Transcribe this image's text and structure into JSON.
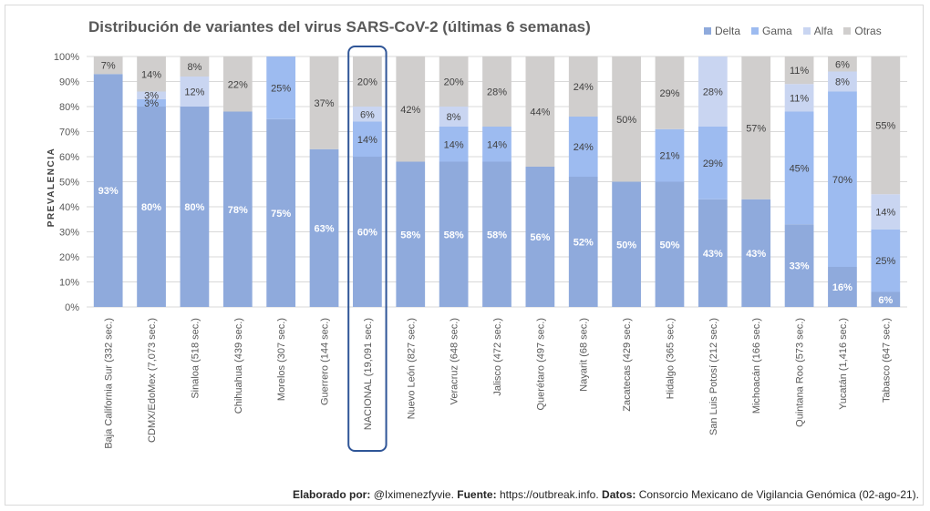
{
  "chart_data": {
    "type": "bar",
    "stacked": true,
    "title": "Distribución de variantes del virus SARS-CoV-2 (últimas 6 semanas)",
    "ylabel": "PREVALENCIA",
    "xlabel": "",
    "ylim": [
      0,
      100
    ],
    "yticks": [
      "0%",
      "10%",
      "20%",
      "30%",
      "40%",
      "50%",
      "60%",
      "70%",
      "80%",
      "90%",
      "100%"
    ],
    "highlight_category": "NACIONAL (19,091 sec.)",
    "legend_position": "top-right",
    "categories": [
      "Baja California Sur (332 sec.)",
      "CDMX/EdoMex (7,073 sec.)",
      "Sinaloa (518 sec.)",
      "Chihuahua (439 sec.)",
      "Morelos (307 sec.)",
      "Guerrero (144 sec.)",
      "NACIONAL (19,091 sec.)",
      "Nuevo León (827 sec.)",
      "Veracruz (648 sec.)",
      "Jalisco (472 sec.)",
      "Querétaro (497 sec.)",
      "Nayarit (68 sec.)",
      "Zacatecas (429 sec.)",
      "Hidalgo (365 sec.)",
      "San Luis Potosí (212 sec.)",
      "Michoacán (166 sec.)",
      "Quintana Roo (573 sec.)",
      "Yucatán (1,416 sec.)",
      "Tabasco (647 sec.)"
    ],
    "series": [
      {
        "name": "Delta",
        "color": "#8faadc",
        "labelColor": "#ffffff",
        "values": [
          93,
          80,
          80,
          78,
          75,
          63,
          60,
          58,
          58,
          58,
          56,
          52,
          50,
          50,
          43,
          43,
          33,
          16,
          6
        ],
        "labels": [
          "93%",
          "80%",
          "80%",
          "78%",
          "75%",
          "63%",
          "60%",
          "58%",
          "58%",
          "58%",
          "56%",
          "52%",
          "50%",
          "50%",
          "43%",
          "43%",
          "33%",
          "16%",
          "6%"
        ]
      },
      {
        "name": "Gama",
        "color": "#9dbbf0",
        "labelColor": "#404040",
        "values": [
          0,
          3,
          0,
          0,
          25,
          0,
          14,
          0,
          14,
          14,
          0,
          24,
          0,
          21,
          29,
          0,
          45,
          70,
          25
        ],
        "labels": [
          "",
          "3%",
          "",
          "",
          "25%",
          "",
          "14%",
          "",
          "14%",
          "14%",
          "",
          "24%",
          "",
          "21%",
          "29%",
          "",
          "45%",
          "70%",
          "25%"
        ]
      },
      {
        "name": "Alfa",
        "color": "#c9d5f1",
        "labelColor": "#404040",
        "values": [
          0,
          3,
          12,
          0,
          0,
          0,
          6,
          0,
          8,
          0,
          0,
          0,
          0,
          0,
          28,
          0,
          11,
          8,
          14
        ],
        "labels": [
          "",
          "3%",
          "12%",
          "",
          "",
          "",
          "6%",
          "",
          "8%",
          "",
          "",
          "",
          "",
          "",
          "28%",
          "",
          "11%",
          "8%",
          "14%"
        ]
      },
      {
        "name": "Otras",
        "color": "#d0cecd",
        "labelColor": "#404040",
        "values": [
          7,
          14,
          8,
          22,
          0,
          37,
          20,
          42,
          20,
          28,
          44,
          24,
          50,
          29,
          0,
          57,
          11,
          6,
          55
        ],
        "labels": [
          "7%",
          "14%",
          "8%",
          "22%",
          "",
          "37%",
          "20%",
          "42%",
          "20%",
          "28%",
          "44%",
          "24%",
          "50%",
          "29%",
          "",
          "57%",
          "11%",
          "6%",
          "55%"
        ]
      }
    ]
  },
  "footer": {
    "made_by_label": "Elaborado por:",
    "made_by_value": "@Iximenezfyvie.",
    "source_label": "Fuente:",
    "source_value": "https://outbreak.info.",
    "data_label": "Datos:",
    "data_value": "Consorcio Mexicano de Vigilancia Genómica (02-ago-21)."
  }
}
